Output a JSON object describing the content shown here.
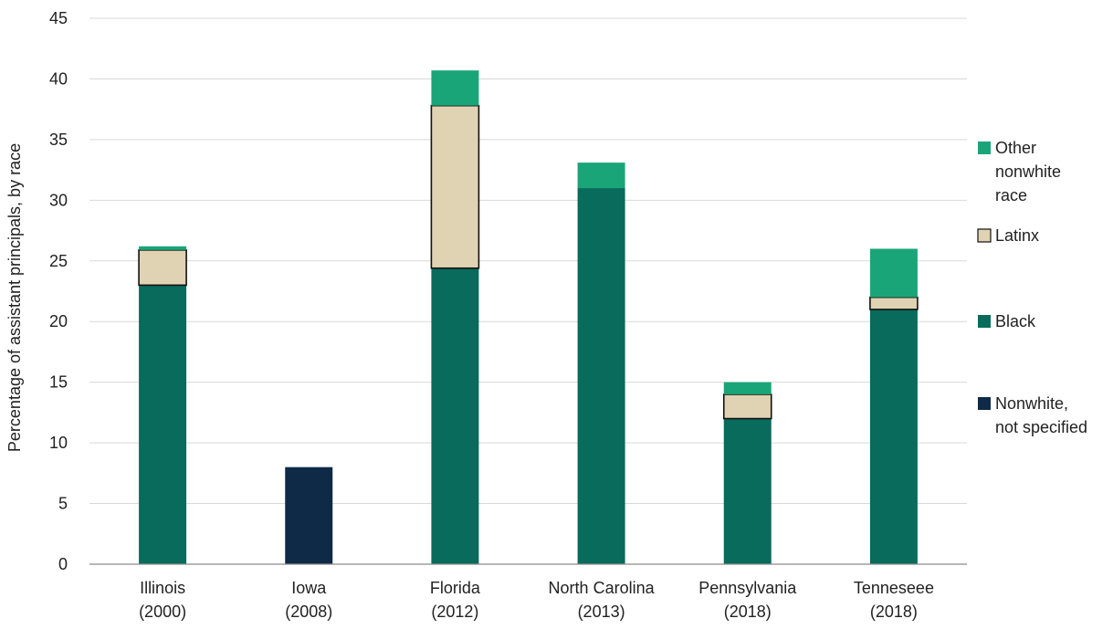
{
  "chart_data": {
    "type": "bar",
    "stacked": true,
    "title": "",
    "xlabel": "",
    "ylabel": "Percentage of assistant principals, by race",
    "ylim": [
      0,
      45
    ],
    "yticks": [
      0,
      5,
      10,
      15,
      20,
      25,
      30,
      35,
      40,
      45
    ],
    "grid": true,
    "legend_position": "right",
    "categories": [
      [
        "Illinois",
        "(2000)"
      ],
      [
        "Iowa",
        "(2008)"
      ],
      [
        "Florida",
        "(2012)"
      ],
      [
        "North Carolina",
        "(2013)"
      ],
      [
        "Pennsylvania",
        "(2018)"
      ],
      [
        "Tenneseee",
        "(2018)"
      ]
    ],
    "series": [
      {
        "name": [
          "Nonwhite,",
          "not specified"
        ],
        "color": "#0e2a47",
        "outlined": false,
        "values": [
          0,
          8,
          0,
          0,
          0,
          0
        ]
      },
      {
        "name": [
          "Black"
        ],
        "color": "#086b5b",
        "outlined": false,
        "values": [
          23,
          0,
          24.4,
          31,
          12,
          21
        ]
      },
      {
        "name": [
          "Latinx"
        ],
        "color": "#e0d3b3",
        "outlined": true,
        "values": [
          2.9,
          0,
          13.4,
          0,
          2,
          1
        ]
      },
      {
        "name": [
          "Other",
          "nonwhite",
          "race"
        ],
        "color": "#1aa578",
        "outlined": false,
        "values": [
          0.3,
          0,
          2.9,
          2.1,
          1,
          4
        ]
      }
    ]
  }
}
